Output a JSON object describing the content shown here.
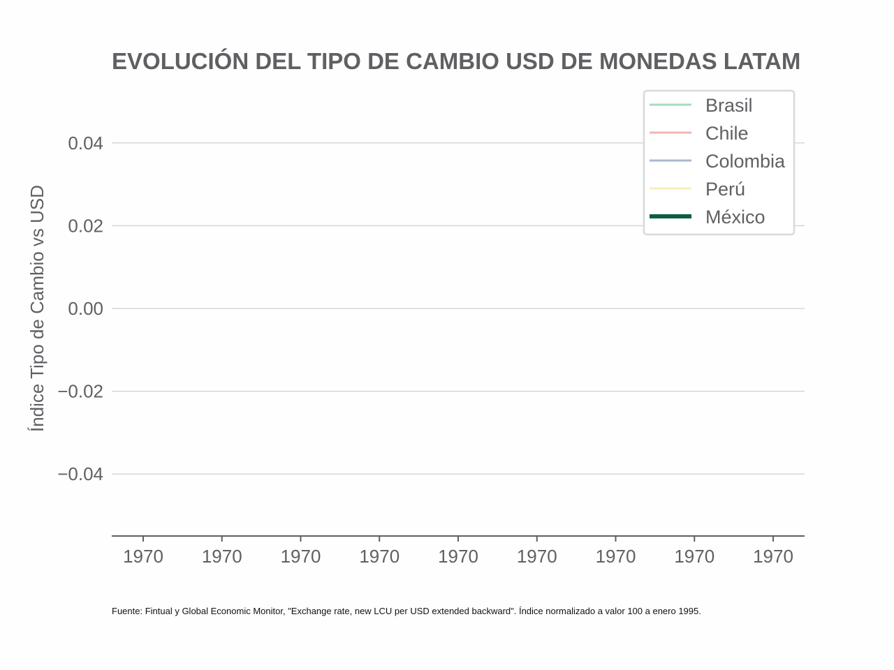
{
  "chart_data": {
    "type": "line",
    "title": "EVOLUCIÓN DEL TIPO DE CAMBIO USD DE MONEDAS LATAM",
    "xlabel": "",
    "ylabel": "Índice Tipo de Cambio vs USD",
    "ylim": [
      -0.055,
      0.055
    ],
    "yticks": [
      "0.04",
      "0.02",
      "0.00",
      "−0.02",
      "−0.04"
    ],
    "ytick_values": [
      0.04,
      0.02,
      0.0,
      -0.02,
      -0.04
    ],
    "xticks": [
      "1970",
      "1970",
      "1970",
      "1970",
      "1970",
      "1970",
      "1970",
      "1970",
      "1970"
    ],
    "grid": "horizontal",
    "legend_position": "top-right",
    "series": [
      {
        "name": "Brasil",
        "color": "#a8dcb7",
        "values": []
      },
      {
        "name": "Chile",
        "color": "#f0b5b0",
        "values": []
      },
      {
        "name": "Colombia",
        "color": "#a8b8cc",
        "values": []
      },
      {
        "name": "Perú",
        "color": "#f9eeb8",
        "values": []
      },
      {
        "name": "México",
        "color": "#0b5e44",
        "values": []
      }
    ],
    "source": "Fuente: Fintual y Global Economic Monitor, \"Exchange rate, new LCU per USD extended backward\". Índice normalizado a valor 100 a enero 1995."
  }
}
